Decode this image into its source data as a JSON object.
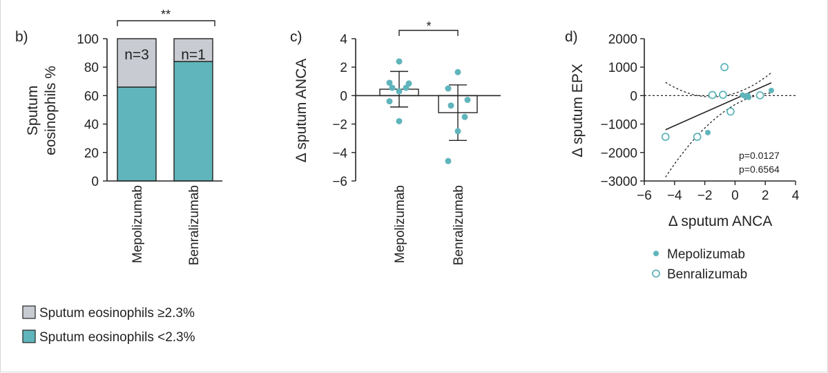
{
  "colors": {
    "teal": "#5fb5bb",
    "grey": "#c8ccd2",
    "dark": "#222222"
  },
  "chart_data": [
    {
      "panel_label": "b)",
      "type": "bar",
      "stacked": true,
      "categories": [
        "Mepolizumab",
        "Benralizumab"
      ],
      "ylabel": [
        "Sputum",
        "eosinophils %"
      ],
      "ylim": [
        0,
        100
      ],
      "yticks": [
        "0",
        "20",
        "40",
        "60",
        "80",
        "100"
      ],
      "series": [
        {
          "name": "Sputum eosinophils <2.3%",
          "values": [
            66,
            84
          ]
        },
        {
          "name": "Sputum eosinophils ≥2.3%",
          "values": [
            34,
            16
          ]
        }
      ],
      "bar_labels": [
        "n=3",
        "n=1"
      ],
      "significance": "**",
      "legend": [
        {
          "label": "Sputum eosinophils ≥2.3%",
          "swatch": "grey"
        },
        {
          "label": "Sputum eosinophils <2.3%",
          "swatch": "teal"
        }
      ]
    },
    {
      "panel_label": "c)",
      "type": "bar",
      "categories": [
        "Mepolizumab",
        "Benralizumab"
      ],
      "ylabel": "Δ sputum ANCA",
      "ylim": [
        -6,
        4
      ],
      "yticks": [
        "−6",
        "−4",
        "−2",
        "0",
        "2",
        "4"
      ],
      "means": [
        0.45,
        -1.2
      ],
      "sd": [
        1.25,
        1.95
      ],
      "points": [
        [
          2.4,
          0.9,
          0.85,
          0.55,
          0.55,
          0.3,
          -0.4,
          -1.8
        ],
        [
          1.65,
          0.5,
          -0.3,
          -0.7,
          -1.5,
          -2.5,
          -4.6
        ]
      ],
      "significance": "*"
    },
    {
      "panel_label": "d)",
      "type": "scatter",
      "xlabel": "Δ sputum ANCA",
      "ylabel": "Δ sputum EPX",
      "xlim": [
        -6,
        4
      ],
      "ylim": [
        -3000,
        2000
      ],
      "xticks": [
        "−6",
        "−4",
        "−2",
        "0",
        "2",
        "4"
      ],
      "yticks": [
        "−3000",
        "−2000",
        "−1000",
        "0",
        "1000",
        "2000"
      ],
      "series": [
        {
          "name": "Mepolizumab",
          "marker": "filled",
          "x": [
            -1.8,
            0.5,
            0.7,
            0.85,
            0.9,
            2.4
          ],
          "y": [
            -1300,
            20,
            -40,
            0,
            -60,
            180
          ]
        },
        {
          "name": "Benralizumab",
          "marker": "open",
          "x": [
            -4.6,
            -2.5,
            -1.5,
            -0.8,
            -0.7,
            -0.3,
            1.65
          ],
          "y": [
            -1450,
            -1450,
            20,
            30,
            1000,
            -560,
            10
          ]
        }
      ],
      "fit_line": {
        "x": [
          -4.6,
          2.4
        ],
        "y": [
          -1200,
          450
        ]
      },
      "p_values": [
        "p=0.0127",
        "p=0.6564"
      ]
    }
  ]
}
